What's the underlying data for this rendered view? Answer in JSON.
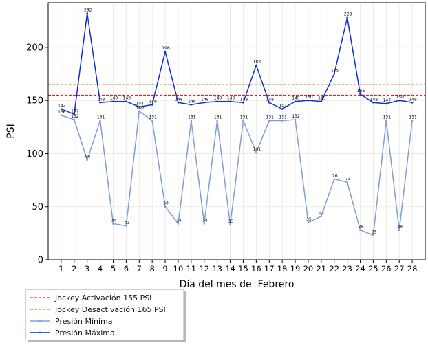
{
  "chart_data": {
    "type": "line",
    "xlabel": "Día del mes de  Febrero",
    "ylabel": "PSI",
    "xlim": [
      0,
      29
    ],
    "ylim": [
      0,
      242
    ],
    "x": [
      1,
      2,
      3,
      4,
      5,
      6,
      7,
      8,
      9,
      10,
      11,
      12,
      13,
      14,
      15,
      16,
      17,
      18,
      19,
      20,
      21,
      22,
      23,
      24,
      25,
      26,
      27,
      28
    ],
    "y_ticks": [
      0,
      50,
      100,
      150,
      200
    ],
    "grid": true,
    "legend_position": "bottom-left, outside plot",
    "reference_lines": [
      {
        "name": "Jockey Activación 155 PSI",
        "value": 155,
        "color": "#d62728",
        "style": "dashed"
      },
      {
        "name": "Jockey Desactivación 165 PSI",
        "value": 165,
        "color": "#c8860a",
        "style": "dashed"
      }
    ],
    "series": [
      {
        "name": "Presión Mínima",
        "color": "#7b9fd6",
        "values": [
          136,
          132,
          94,
          131,
          34,
          32,
          140,
          131,
          50,
          34,
          131,
          34,
          131,
          33,
          131,
          101,
          131,
          131,
          132,
          35,
          41,
          76,
          73,
          28,
          23,
          131,
          28,
          131
        ]
      },
      {
        "name": "Presión Máxima",
        "color": "#0a2fd6",
        "values": [
          142,
          137,
          232,
          148,
          149,
          149,
          144,
          146,
          196,
          148,
          146,
          148,
          149,
          149,
          148,
          183,
          148,
          142,
          149,
          150,
          149,
          175,
          228,
          156,
          148,
          147,
          150,
          148
        ]
      }
    ]
  }
}
